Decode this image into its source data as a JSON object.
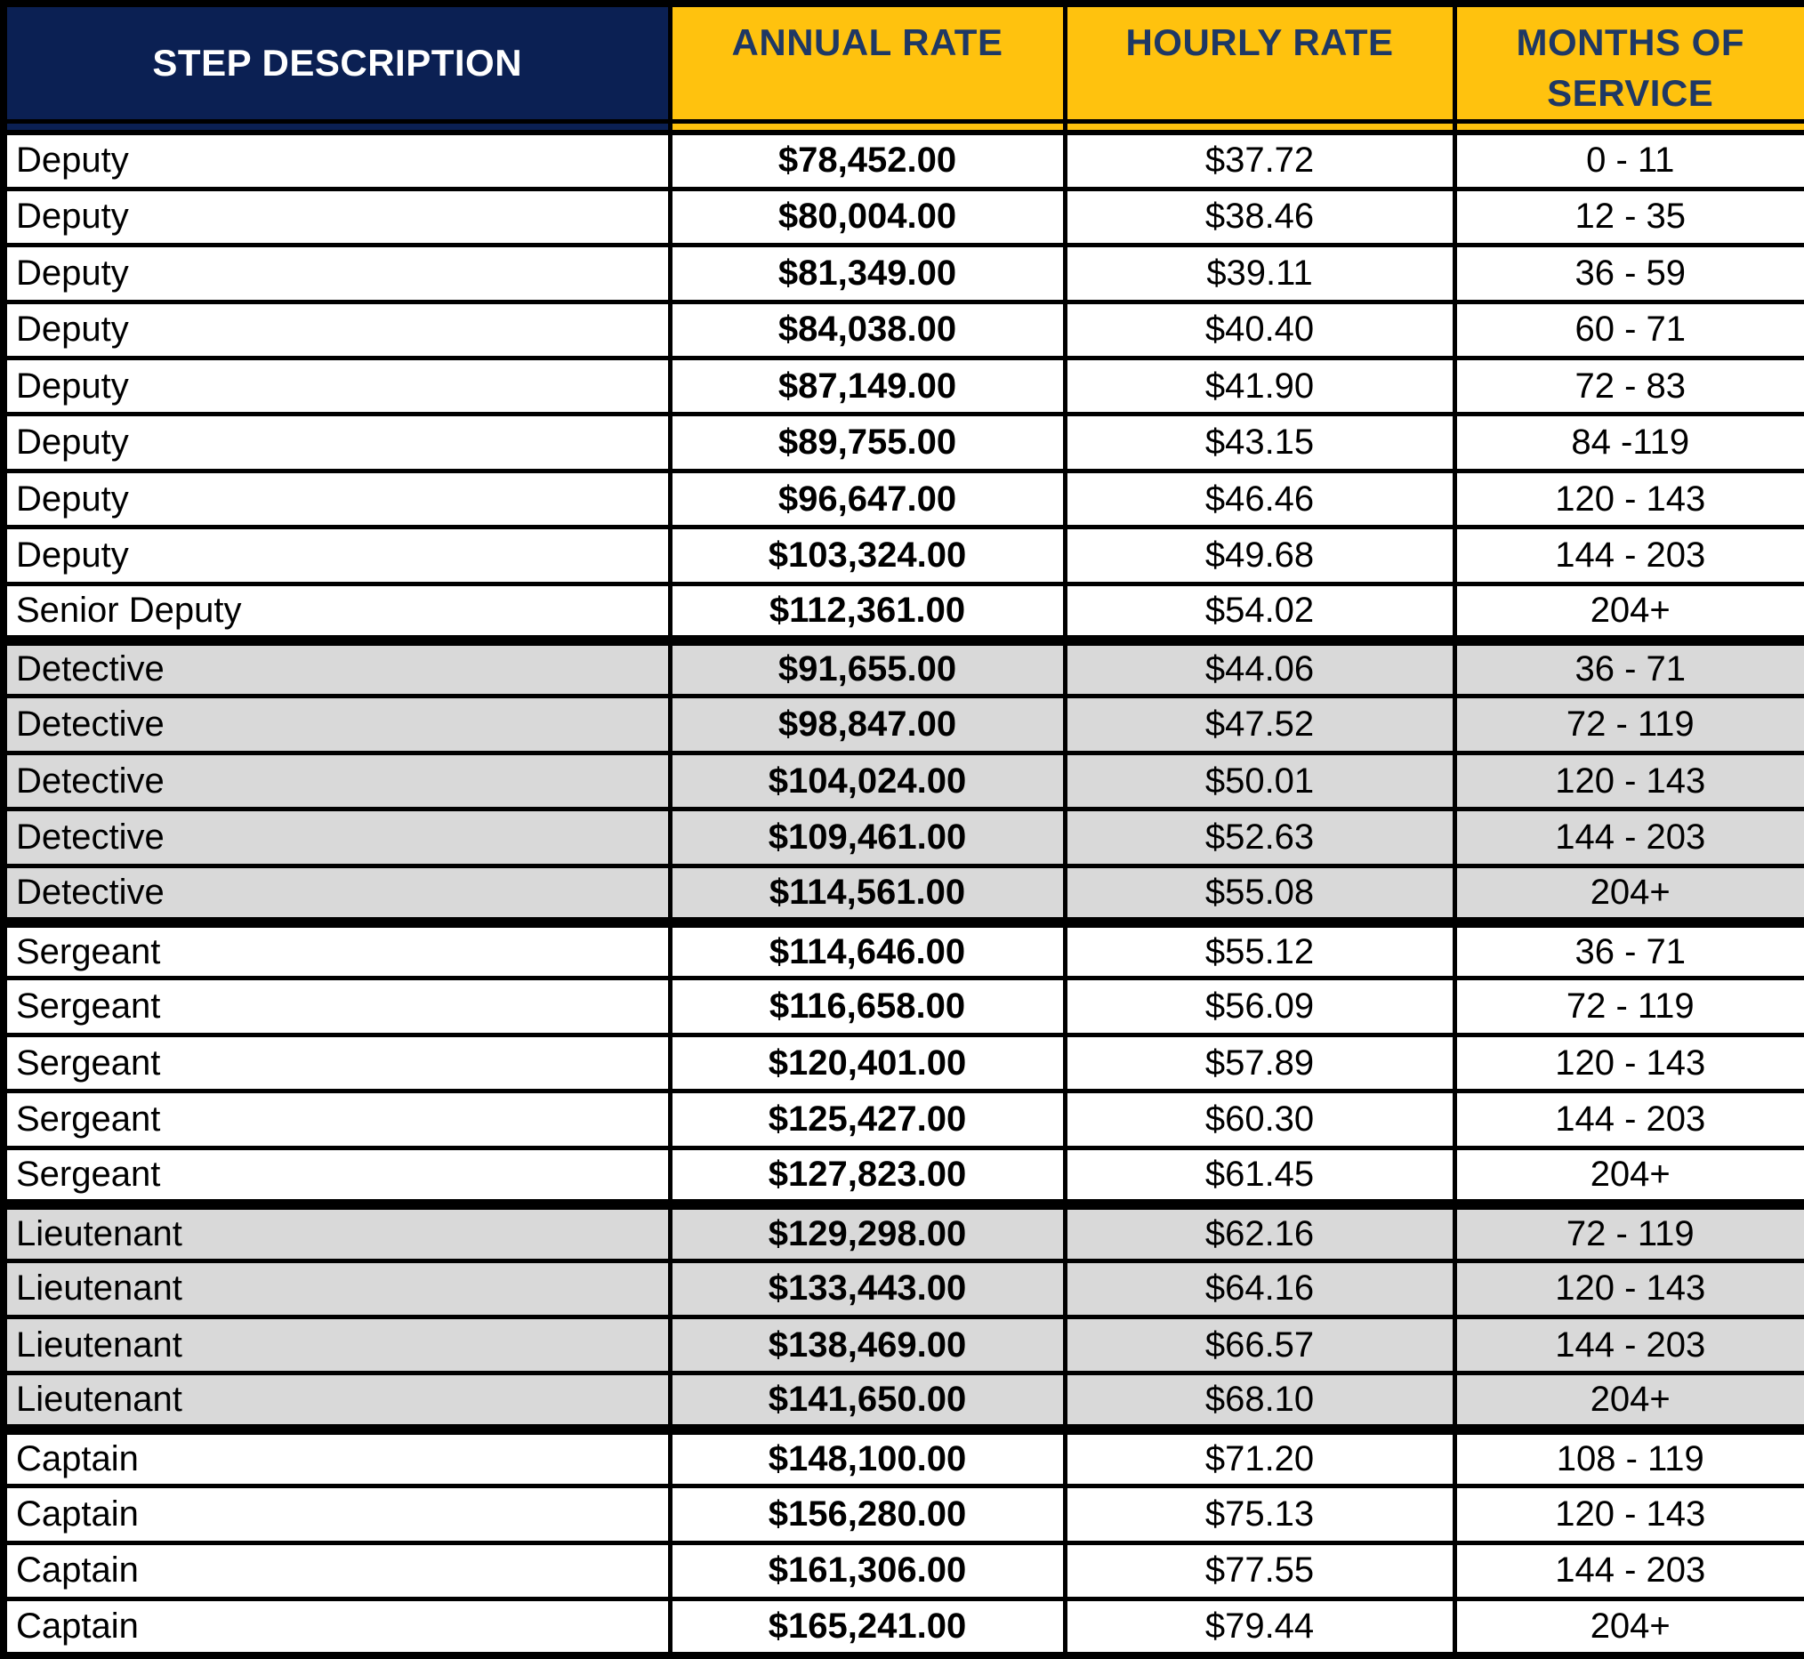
{
  "colors": {
    "navy": "#0B2053",
    "gold": "#FFC20E",
    "header_text_on_gold": "#1F3864",
    "header_text_on_navy": "#FFFFFF",
    "shaded_row": "#D9D9D9",
    "border": "#000000"
  },
  "table": {
    "headers": {
      "step": "STEP DESCRIPTION",
      "annual": "ANNUAL RATE",
      "hourly": "HOURLY RATE",
      "months": "MONTHS OF\nSERVICE"
    },
    "rows": [
      {
        "step": "Deputy",
        "annual": "$78,452.00",
        "hourly": "$37.72",
        "months": "0 - 11",
        "shaded": false,
        "section_start": false
      },
      {
        "step": "Deputy",
        "annual": "$80,004.00",
        "hourly": "$38.46",
        "months": "12 - 35",
        "shaded": false,
        "section_start": false
      },
      {
        "step": "Deputy",
        "annual": "$81,349.00",
        "hourly": "$39.11",
        "months": "36 - 59",
        "shaded": false,
        "section_start": false
      },
      {
        "step": "Deputy",
        "annual": "$84,038.00",
        "hourly": "$40.40",
        "months": "60 - 71",
        "shaded": false,
        "section_start": false
      },
      {
        "step": "Deputy",
        "annual": "$87,149.00",
        "hourly": "$41.90",
        "months": "72 - 83",
        "shaded": false,
        "section_start": false
      },
      {
        "step": "Deputy",
        "annual": "$89,755.00",
        "hourly": "$43.15",
        "months": "84 -119",
        "shaded": false,
        "section_start": false
      },
      {
        "step": "Deputy",
        "annual": "$96,647.00",
        "hourly": "$46.46",
        "months": "120 - 143",
        "shaded": false,
        "section_start": false
      },
      {
        "step": "Deputy",
        "annual": "$103,324.00",
        "hourly": "$49.68",
        "months": "144 - 203",
        "shaded": false,
        "section_start": false
      },
      {
        "step": "Senior Deputy",
        "annual": "$112,361.00",
        "hourly": "$54.02",
        "months": "204+",
        "shaded": false,
        "section_start": false
      },
      {
        "step": "Detective",
        "annual": "$91,655.00",
        "hourly": "$44.06",
        "months": "36 - 71",
        "shaded": true,
        "section_start": true
      },
      {
        "step": "Detective",
        "annual": "$98,847.00",
        "hourly": "$47.52",
        "months": "72 - 119",
        "shaded": true,
        "section_start": false
      },
      {
        "step": "Detective",
        "annual": "$104,024.00",
        "hourly": "$50.01",
        "months": "120 - 143",
        "shaded": true,
        "section_start": false
      },
      {
        "step": "Detective",
        "annual": "$109,461.00",
        "hourly": "$52.63",
        "months": "144 - 203",
        "shaded": true,
        "section_start": false
      },
      {
        "step": "Detective",
        "annual": "$114,561.00",
        "hourly": "$55.08",
        "months": "204+",
        "shaded": true,
        "section_start": false
      },
      {
        "step": "Sergeant",
        "annual": "$114,646.00",
        "hourly": "$55.12",
        "months": "36 - 71",
        "shaded": false,
        "section_start": true
      },
      {
        "step": "Sergeant",
        "annual": "$116,658.00",
        "hourly": "$56.09",
        "months": "72 - 119",
        "shaded": false,
        "section_start": false
      },
      {
        "step": "Sergeant",
        "annual": "$120,401.00",
        "hourly": "$57.89",
        "months": "120 - 143",
        "shaded": false,
        "section_start": false
      },
      {
        "step": "Sergeant",
        "annual": "$125,427.00",
        "hourly": "$60.30",
        "months": "144 - 203",
        "shaded": false,
        "section_start": false
      },
      {
        "step": "Sergeant",
        "annual": "$127,823.00",
        "hourly": "$61.45",
        "months": "204+",
        "shaded": false,
        "section_start": false
      },
      {
        "step": "Lieutenant",
        "annual": "$129,298.00",
        "hourly": "$62.16",
        "months": "72 - 119",
        "shaded": true,
        "section_start": true
      },
      {
        "step": "Lieutenant",
        "annual": "$133,443.00",
        "hourly": "$64.16",
        "months": "120 - 143",
        "shaded": true,
        "section_start": false
      },
      {
        "step": "Lieutenant",
        "annual": "$138,469.00",
        "hourly": "$66.57",
        "months": "144 - 203",
        "shaded": true,
        "section_start": false
      },
      {
        "step": "Lieutenant",
        "annual": "$141,650.00",
        "hourly": "$68.10",
        "months": "204+",
        "shaded": true,
        "section_start": false
      },
      {
        "step": "Captain",
        "annual": "$148,100.00",
        "hourly": "$71.20",
        "months": "108 - 119",
        "shaded": false,
        "section_start": true
      },
      {
        "step": "Captain",
        "annual": "$156,280.00",
        "hourly": "$75.13",
        "months": "120 - 143",
        "shaded": false,
        "section_start": false
      },
      {
        "step": "Captain",
        "annual": "$161,306.00",
        "hourly": "$77.55",
        "months": "144 - 203",
        "shaded": false,
        "section_start": false
      },
      {
        "step": "Captain",
        "annual": "$165,241.00",
        "hourly": "$79.44",
        "months": "204+",
        "shaded": false,
        "section_start": false
      }
    ]
  }
}
